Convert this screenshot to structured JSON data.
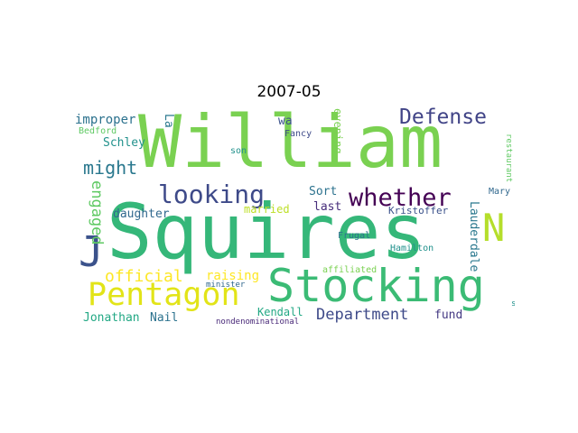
{
  "title": "2007-05",
  "words": {
    "william": {
      "text": "William",
      "color": "#7ad151"
    },
    "squires": {
      "text": "Squires",
      "color": "#35b779"
    },
    "stocking": {
      "text": "Stocking",
      "color": "#3bbb75"
    },
    "pentagon": {
      "text": "Pentagon",
      "color": "#e2e418"
    },
    "looking": {
      "text": "looking",
      "color": "#3e4a89"
    },
    "whether": {
      "text": "whether",
      "color": "#440154"
    },
    "defense": {
      "text": "Defense",
      "color": "#414487"
    },
    "n": {
      "text": "N",
      "color": "#b5de2b"
    },
    "j": {
      "text": "J",
      "color": "#3b528b"
    },
    "might": {
      "text": "might",
      "color": "#2a788e"
    },
    "engaged": {
      "text": "engaged",
      "color": "#5ec962"
    },
    "official": {
      "text": "official",
      "color": "#fde725"
    },
    "department": {
      "text": "Department",
      "color": "#3e4a89"
    },
    "improper": {
      "text": "improper",
      "color": "#2c728e"
    },
    "schley": {
      "text": "Schley",
      "color": "#21918c"
    },
    "daughter": {
      "text": "daughter",
      "color": "#31688e"
    },
    "la": {
      "text": "La",
      "color": "#2a788e"
    },
    "wa": {
      "text": "wa",
      "color": "#3b528b"
    },
    "fancy": {
      "text": "Fancy",
      "color": "#3e4a89"
    },
    "son": {
      "text": "son",
      "color": "#21918c"
    },
    "bedford": {
      "text": "Bedford",
      "color": "#5ec962"
    },
    "evening": {
      "text": "evening",
      "color": "#7ad151"
    },
    "restaurant": {
      "text": "restaurant",
      "color": "#5ec962"
    },
    "sort": {
      "text": "Sort",
      "color": "#2c728e"
    },
    "married": {
      "text": "married",
      "color": "#bddf26"
    },
    "last": {
      "text": "last",
      "color": "#472d7b"
    },
    "kristoffer": {
      "text": "Kristoffer",
      "color": "#3b528b"
    },
    "lauderdale": {
      "text": "Lauderdale",
      "color": "#2a788e"
    },
    "mary": {
      "text": "Mary",
      "color": "#31688e"
    },
    "raising": {
      "text": "raising",
      "color": "#fde725"
    },
    "frugal": {
      "text": "Frugal",
      "color": "#2c728e"
    },
    "hamilton": {
      "text": "Hamilton",
      "color": "#21918c"
    },
    "affiliated": {
      "text": "affiliated",
      "color": "#7ad151"
    },
    "minister": {
      "text": "minister",
      "color": "#31688e"
    },
    "kendall": {
      "text": "Kendall",
      "color": "#22a884"
    },
    "jonathan": {
      "text": "Jonathan",
      "color": "#22a884"
    },
    "nail": {
      "text": "Nail",
      "color": "#2c728e"
    },
    "fund": {
      "text": "fund",
      "color": "#443983"
    },
    "nondenominational": {
      "text": "nondenominational",
      "color": "#482878"
    },
    "s": {
      "text": "s",
      "color": "#21918c"
    }
  }
}
